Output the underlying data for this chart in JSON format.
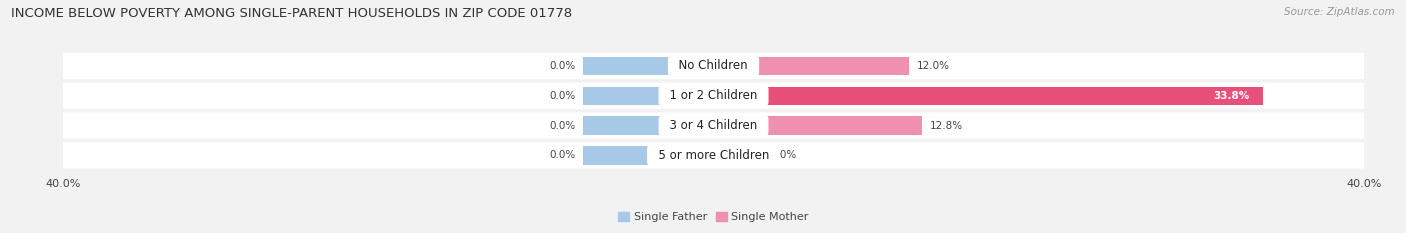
{
  "title": "INCOME BELOW POVERTY AMONG SINGLE-PARENT HOUSEHOLDS IN ZIP CODE 01778",
  "source": "Source: ZipAtlas.com",
  "categories": [
    "No Children",
    "1 or 2 Children",
    "3 or 4 Children",
    "5 or more Children"
  ],
  "single_father": [
    0.0,
    0.0,
    0.0,
    0.0
  ],
  "single_mother": [
    12.0,
    33.8,
    12.8,
    0.0
  ],
  "father_fixed_bar": 8.0,
  "mother_small_bar": 3.0,
  "xlim": 40.0,
  "father_color": "#a8c8e8",
  "mother_color": "#f080a0",
  "mother_color_light": "#f4b0c8",
  "father_label": "Single Father",
  "mother_label": "Single Mother",
  "bg_color": "#f2f2f2",
  "row_bg_color": "#ffffff",
  "title_fontsize": 9.5,
  "source_fontsize": 7.5,
  "value_fontsize": 7.5,
  "category_fontsize": 8.5,
  "legend_fontsize": 8.0,
  "axis_label_fontsize": 8.0
}
